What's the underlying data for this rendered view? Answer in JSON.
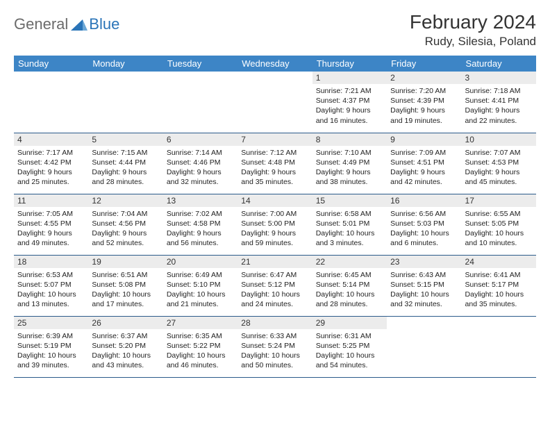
{
  "logo": {
    "general": "General",
    "blue": "Blue",
    "accent_color": "#2a74b8",
    "text_color": "#6b6b6b"
  },
  "header": {
    "month_title": "February 2024",
    "location": "Rudy, Silesia, Poland"
  },
  "colors": {
    "header_bg": "#3d85c6",
    "header_text": "#ffffff",
    "daynum_bg": "#ececec",
    "border": "#2a5a8a",
    "body_text": "#222222"
  },
  "dayNames": [
    "Sunday",
    "Monday",
    "Tuesday",
    "Wednesday",
    "Thursday",
    "Friday",
    "Saturday"
  ],
  "weeks": [
    [
      null,
      null,
      null,
      null,
      {
        "day": "1",
        "sunrise": "Sunrise: 7:21 AM",
        "sunset": "Sunset: 4:37 PM",
        "daylight1": "Daylight: 9 hours",
        "daylight2": "and 16 minutes."
      },
      {
        "day": "2",
        "sunrise": "Sunrise: 7:20 AM",
        "sunset": "Sunset: 4:39 PM",
        "daylight1": "Daylight: 9 hours",
        "daylight2": "and 19 minutes."
      },
      {
        "day": "3",
        "sunrise": "Sunrise: 7:18 AM",
        "sunset": "Sunset: 4:41 PM",
        "daylight1": "Daylight: 9 hours",
        "daylight2": "and 22 minutes."
      }
    ],
    [
      {
        "day": "4",
        "sunrise": "Sunrise: 7:17 AM",
        "sunset": "Sunset: 4:42 PM",
        "daylight1": "Daylight: 9 hours",
        "daylight2": "and 25 minutes."
      },
      {
        "day": "5",
        "sunrise": "Sunrise: 7:15 AM",
        "sunset": "Sunset: 4:44 PM",
        "daylight1": "Daylight: 9 hours",
        "daylight2": "and 28 minutes."
      },
      {
        "day": "6",
        "sunrise": "Sunrise: 7:14 AM",
        "sunset": "Sunset: 4:46 PM",
        "daylight1": "Daylight: 9 hours",
        "daylight2": "and 32 minutes."
      },
      {
        "day": "7",
        "sunrise": "Sunrise: 7:12 AM",
        "sunset": "Sunset: 4:48 PM",
        "daylight1": "Daylight: 9 hours",
        "daylight2": "and 35 minutes."
      },
      {
        "day": "8",
        "sunrise": "Sunrise: 7:10 AM",
        "sunset": "Sunset: 4:49 PM",
        "daylight1": "Daylight: 9 hours",
        "daylight2": "and 38 minutes."
      },
      {
        "day": "9",
        "sunrise": "Sunrise: 7:09 AM",
        "sunset": "Sunset: 4:51 PM",
        "daylight1": "Daylight: 9 hours",
        "daylight2": "and 42 minutes."
      },
      {
        "day": "10",
        "sunrise": "Sunrise: 7:07 AM",
        "sunset": "Sunset: 4:53 PM",
        "daylight1": "Daylight: 9 hours",
        "daylight2": "and 45 minutes."
      }
    ],
    [
      {
        "day": "11",
        "sunrise": "Sunrise: 7:05 AM",
        "sunset": "Sunset: 4:55 PM",
        "daylight1": "Daylight: 9 hours",
        "daylight2": "and 49 minutes."
      },
      {
        "day": "12",
        "sunrise": "Sunrise: 7:04 AM",
        "sunset": "Sunset: 4:56 PM",
        "daylight1": "Daylight: 9 hours",
        "daylight2": "and 52 minutes."
      },
      {
        "day": "13",
        "sunrise": "Sunrise: 7:02 AM",
        "sunset": "Sunset: 4:58 PM",
        "daylight1": "Daylight: 9 hours",
        "daylight2": "and 56 minutes."
      },
      {
        "day": "14",
        "sunrise": "Sunrise: 7:00 AM",
        "sunset": "Sunset: 5:00 PM",
        "daylight1": "Daylight: 9 hours",
        "daylight2": "and 59 minutes."
      },
      {
        "day": "15",
        "sunrise": "Sunrise: 6:58 AM",
        "sunset": "Sunset: 5:01 PM",
        "daylight1": "Daylight: 10 hours",
        "daylight2": "and 3 minutes."
      },
      {
        "day": "16",
        "sunrise": "Sunrise: 6:56 AM",
        "sunset": "Sunset: 5:03 PM",
        "daylight1": "Daylight: 10 hours",
        "daylight2": "and 6 minutes."
      },
      {
        "day": "17",
        "sunrise": "Sunrise: 6:55 AM",
        "sunset": "Sunset: 5:05 PM",
        "daylight1": "Daylight: 10 hours",
        "daylight2": "and 10 minutes."
      }
    ],
    [
      {
        "day": "18",
        "sunrise": "Sunrise: 6:53 AM",
        "sunset": "Sunset: 5:07 PM",
        "daylight1": "Daylight: 10 hours",
        "daylight2": "and 13 minutes."
      },
      {
        "day": "19",
        "sunrise": "Sunrise: 6:51 AM",
        "sunset": "Sunset: 5:08 PM",
        "daylight1": "Daylight: 10 hours",
        "daylight2": "and 17 minutes."
      },
      {
        "day": "20",
        "sunrise": "Sunrise: 6:49 AM",
        "sunset": "Sunset: 5:10 PM",
        "daylight1": "Daylight: 10 hours",
        "daylight2": "and 21 minutes."
      },
      {
        "day": "21",
        "sunrise": "Sunrise: 6:47 AM",
        "sunset": "Sunset: 5:12 PM",
        "daylight1": "Daylight: 10 hours",
        "daylight2": "and 24 minutes."
      },
      {
        "day": "22",
        "sunrise": "Sunrise: 6:45 AM",
        "sunset": "Sunset: 5:14 PM",
        "daylight1": "Daylight: 10 hours",
        "daylight2": "and 28 minutes."
      },
      {
        "day": "23",
        "sunrise": "Sunrise: 6:43 AM",
        "sunset": "Sunset: 5:15 PM",
        "daylight1": "Daylight: 10 hours",
        "daylight2": "and 32 minutes."
      },
      {
        "day": "24",
        "sunrise": "Sunrise: 6:41 AM",
        "sunset": "Sunset: 5:17 PM",
        "daylight1": "Daylight: 10 hours",
        "daylight2": "and 35 minutes."
      }
    ],
    [
      {
        "day": "25",
        "sunrise": "Sunrise: 6:39 AM",
        "sunset": "Sunset: 5:19 PM",
        "daylight1": "Daylight: 10 hours",
        "daylight2": "and 39 minutes."
      },
      {
        "day": "26",
        "sunrise": "Sunrise: 6:37 AM",
        "sunset": "Sunset: 5:20 PM",
        "daylight1": "Daylight: 10 hours",
        "daylight2": "and 43 minutes."
      },
      {
        "day": "27",
        "sunrise": "Sunrise: 6:35 AM",
        "sunset": "Sunset: 5:22 PM",
        "daylight1": "Daylight: 10 hours",
        "daylight2": "and 46 minutes."
      },
      {
        "day": "28",
        "sunrise": "Sunrise: 6:33 AM",
        "sunset": "Sunset: 5:24 PM",
        "daylight1": "Daylight: 10 hours",
        "daylight2": "and 50 minutes."
      },
      {
        "day": "29",
        "sunrise": "Sunrise: 6:31 AM",
        "sunset": "Sunset: 5:25 PM",
        "daylight1": "Daylight: 10 hours",
        "daylight2": "and 54 minutes."
      },
      null,
      null
    ]
  ]
}
